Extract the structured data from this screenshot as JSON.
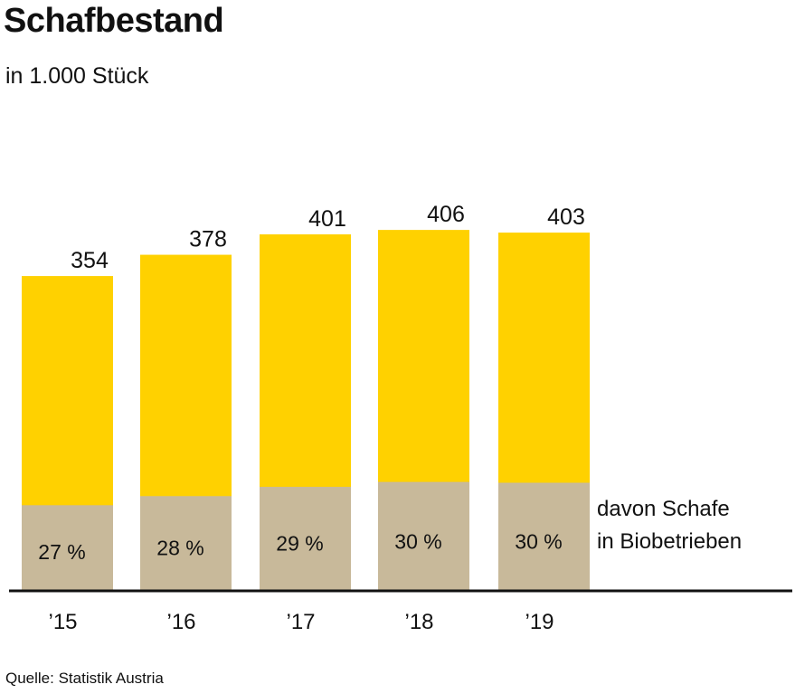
{
  "chart_data": {
    "type": "bar",
    "title": "Schafbestand",
    "subtitle": "in 1.000 Stück",
    "categories": [
      "’15",
      "’16",
      "’17",
      "’18",
      "’19"
    ],
    "series": [
      {
        "values": [
          354,
          378,
          401,
          406,
          403
        ]
      }
    ],
    "bio_share_labels": [
      "27 %",
      "28 %",
      "29 %",
      "30 %",
      "30 %"
    ],
    "bio_share": [
      27,
      28,
      29,
      30,
      30
    ],
    "legend": [
      "davon Schafe",
      "in Biobetrieben"
    ],
    "ylim": [
      0,
      420
    ],
    "grid": false,
    "colors": {
      "total": "#FFD100",
      "bio": "#C8B99A",
      "axis": "#111111"
    }
  },
  "source": "Quelle: Statistik Austria"
}
